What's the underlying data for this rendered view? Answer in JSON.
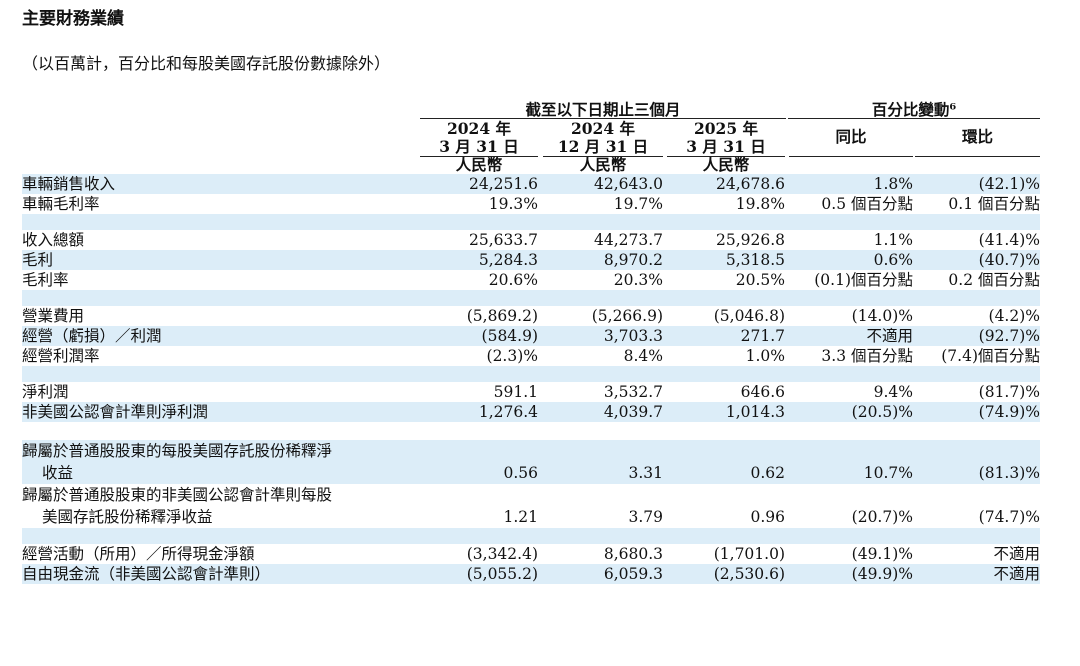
{
  "title": "主要財務業績",
  "subtitle": "（以百萬計，百分比和每股美國存託股份數據除外）",
  "header": {
    "group_period": "截至以下日期止三個月",
    "group_change": "百分比變動⁶",
    "columns": [
      {
        "l1": "2024 年",
        "l2": "3 月 31 日",
        "unit": "人民幣"
      },
      {
        "l1": "2024 年",
        "l2": "12 月 31 日",
        "unit": "人民幣"
      },
      {
        "l1": "2025 年",
        "l2": "3 月 31 日",
        "unit": "人民幣"
      }
    ],
    "yoy": "同比",
    "qoq": "環比"
  },
  "rows": [
    {
      "label": "車輛銷售收入",
      "values": [
        "24,251.6",
        "42,643.0",
        "24,678.6",
        "1.8%",
        "(42.1)%"
      ]
    },
    {
      "label": "車輛毛利率",
      "values": [
        "19.3%",
        "19.7%",
        "19.8%",
        "0.5 個百分點",
        "0.1 個百分點"
      ]
    },
    {
      "label": "收入總額",
      "values": [
        "25,633.7",
        "44,273.7",
        "25,926.8",
        "1.1%",
        "(41.4)%"
      ]
    },
    {
      "label": "毛利",
      "values": [
        "5,284.3",
        "8,970.2",
        "5,318.5",
        "0.6%",
        "(40.7)%"
      ]
    },
    {
      "label": "毛利率",
      "values": [
        "20.6%",
        "20.3%",
        "20.5%",
        "(0.1)個百分點",
        "0.2 個百分點"
      ]
    },
    {
      "label": "營業費用",
      "values": [
        "(5,869.2)",
        "(5,266.9)",
        "(5,046.8)",
        "(14.0)%",
        "(4.2)%"
      ]
    },
    {
      "label": "經營（虧損）／利潤",
      "values": [
        "(584.9)",
        "3,703.3",
        "271.7",
        "不適用",
        "(92.7)%"
      ]
    },
    {
      "label": "經營利潤率",
      "values": [
        "(2.3)%",
        "8.4%",
        "1.0%",
        "3.3 個百分點",
        "(7.4)個百分點"
      ]
    },
    {
      "label": "淨利潤",
      "values": [
        "591.1",
        "3,532.7",
        "646.6",
        "9.4%",
        "(81.7)%"
      ]
    },
    {
      "label": "非美國公認會計準則淨利潤",
      "values": [
        "1,276.4",
        "4,039.7",
        "1,014.3",
        "(20.5)%",
        "(74.9)%"
      ]
    },
    {
      "label1": "歸屬於普通股股東的每股美國存託股份稀釋淨",
      "label2": "收益",
      "values": [
        "0.56",
        "3.31",
        "0.62",
        "10.7%",
        "(81.3)%"
      ]
    },
    {
      "label1": "歸屬於普通股股東的非美國公認會計準則每股",
      "label2": "美國存託股份稀釋淨收益",
      "values": [
        "1.21",
        "3.79",
        "0.96",
        "(20.7)%",
        "(74.7)%"
      ]
    },
    {
      "label": "經營活動（所用）／所得現金淨額",
      "values": [
        "(3,342.4)",
        "8,680.3",
        "(1,701.0)",
        "(49.1)%",
        "不適用"
      ]
    },
    {
      "label": "自由現金流（非美國公認會計準則）",
      "values": [
        "(5,055.2)",
        "6,059.3",
        "(2,530.6)",
        "(49.9)%",
        "不適用"
      ]
    }
  ]
}
